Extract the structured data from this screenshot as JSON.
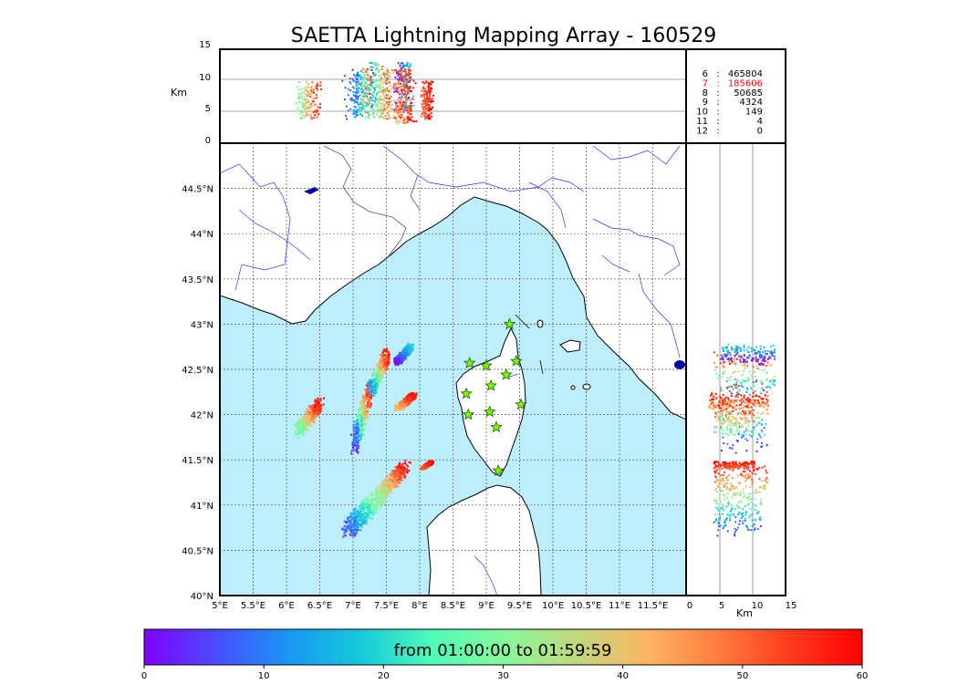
{
  "title": "SAETTA Lightning Mapping Array - 160529",
  "altitude_panel": {
    "ylabel": "Km",
    "yticks": [
      "0",
      "5",
      "10",
      "15"
    ]
  },
  "stats": [
    {
      "label": "6",
      "sep": ":",
      "value": "465804",
      "highlight": false
    },
    {
      "label": "7",
      "sep": ":",
      "value": "185606",
      "highlight": true
    },
    {
      "label": "8",
      "sep": ":",
      "value": "50685",
      "highlight": false
    },
    {
      "label": "9",
      "sep": ":",
      "value": "4324",
      "highlight": false
    },
    {
      "label": "10",
      "sep": ":",
      "value": "149",
      "highlight": false
    },
    {
      "label": "11",
      "sep": ":",
      "value": "4",
      "highlight": false
    },
    {
      "label": "12",
      "sep": ":",
      "value": "0",
      "highlight": false
    }
  ],
  "map": {
    "lon_ticks": [
      "5°E",
      "5.5°E",
      "6°E",
      "6.5°E",
      "7°E",
      "7.5°E",
      "8°E",
      "8.5°E",
      "9°E",
      "9.5°E",
      "10°E",
      "10.5°E",
      "11°E",
      "11.5°E"
    ],
    "lat_ticks": [
      "40°N",
      "40.5°N",
      "41°N",
      "41.5°N",
      "42°N",
      "42.5°N",
      "43°N",
      "43.5°N",
      "44°N",
      "44.5°N"
    ],
    "sea_color": "#bdeefb",
    "land_color": "#ffffff",
    "river_color": "#3333ff",
    "station_color": "#7cfc00",
    "stations": [
      {
        "lon": 9.35,
        "lat": 43.0
      },
      {
        "lon": 8.75,
        "lat": 42.57
      },
      {
        "lon": 9.0,
        "lat": 42.54
      },
      {
        "lon": 9.45,
        "lat": 42.59
      },
      {
        "lon": 9.3,
        "lat": 42.44
      },
      {
        "lon": 9.07,
        "lat": 42.32
      },
      {
        "lon": 8.7,
        "lat": 42.23
      },
      {
        "lon": 9.52,
        "lat": 42.11
      },
      {
        "lon": 8.73,
        "lat": 42.0
      },
      {
        "lon": 9.05,
        "lat": 42.03
      },
      {
        "lon": 9.15,
        "lat": 41.86
      },
      {
        "lon": 9.18,
        "lat": 41.38
      }
    ]
  },
  "side_panel": {
    "xlabel": "Km",
    "xticks": [
      "0",
      "5",
      "10",
      "15"
    ]
  },
  "colorbar": {
    "label": "from 01:00:00 to 01:59:59",
    "ticks": [
      "0",
      "10",
      "20",
      "30",
      "40",
      "50",
      "60"
    ],
    "colors": [
      "#7f00ff",
      "#4a4cff",
      "#1996f3",
      "#16c8dc",
      "#4dfbb9",
      "#86f99c",
      "#c0d97e",
      "#fcb563",
      "#ff7b3e",
      "#ff3b1d",
      "#ff0000"
    ]
  },
  "chart_data": {
    "type": "scatter",
    "title": "SAETTA Lightning Mapping Array - 160529",
    "x_axis": "longitude",
    "y_axis": "latitude",
    "xlim": [
      5,
      12
    ],
    "ylim": [
      40,
      45
    ],
    "altitude_range_km": [
      0,
      15
    ],
    "time_range_min": [
      0,
      60
    ],
    "clusters": [
      {
        "lon": [
          6.95,
          7.3
        ],
        "lat": [
          41.55,
          42.4
        ],
        "alt_km": [
          5,
          12
        ],
        "time_min": [
          0,
          60
        ]
      },
      {
        "lon": [
          7.2,
          7.55
        ],
        "lat": [
          42.2,
          42.75
        ],
        "alt_km": [
          4,
          13
        ],
        "time_min": [
          10,
          60
        ]
      },
      {
        "lon": [
          7.6,
          7.9
        ],
        "lat": [
          42.55,
          42.8
        ],
        "alt_km": [
          5,
          13
        ],
        "time_min": [
          0,
          20
        ]
      },
      {
        "lon": [
          7.6,
          7.95
        ],
        "lat": [
          42.05,
          42.25
        ],
        "alt_km": [
          3,
          12
        ],
        "time_min": [
          40,
          60
        ]
      },
      {
        "lon": [
          6.1,
          6.55
        ],
        "lat": [
          41.75,
          42.2
        ],
        "alt_km": [
          4,
          10
        ],
        "time_min": [
          25,
          60
        ]
      },
      {
        "lon": [
          6.8,
          7.5
        ],
        "lat": [
          40.65,
          41.2
        ],
        "alt_km": [
          4,
          11
        ],
        "time_min": [
          5,
          35
        ]
      },
      {
        "lon": [
          7.3,
          7.85
        ],
        "lat": [
          41.05,
          41.5
        ],
        "alt_km": [
          4,
          12
        ],
        "time_min": [
          30,
          60
        ]
      },
      {
        "lon": [
          8.0,
          8.2
        ],
        "lat": [
          41.4,
          41.5
        ],
        "alt_km": [
          4,
          10
        ],
        "time_min": [
          50,
          60
        ]
      }
    ]
  }
}
